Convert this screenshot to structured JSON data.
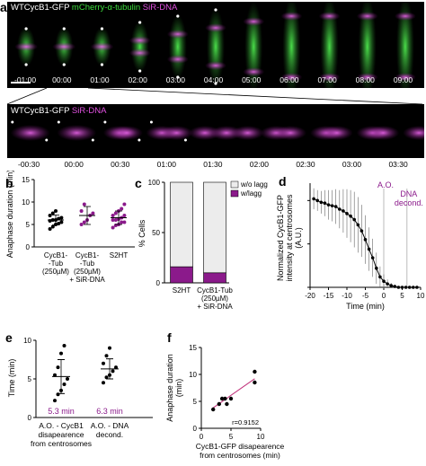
{
  "panel_labels": {
    "a": "a",
    "b": "b",
    "c": "c",
    "d": "d",
    "e": "e",
    "f": "f"
  },
  "panel_a": {
    "row1_header": {
      "part1": "WTCycB1-GFP",
      "part2": "mCherry-α-tubulin",
      "part3": "SiR-DNA"
    },
    "row1_times": [
      "-01:00",
      "00:00",
      "01:00",
      "02:00",
      "03:00",
      "04:00",
      "05:00",
      "06:00",
      "07:00",
      "08:00",
      "09:00"
    ],
    "row2_header": {
      "part1": "WTCycB1-GFP",
      "part2": "SiR-DNA"
    },
    "row2_times": [
      "-00:30",
      "00:00",
      "00:30",
      "01:00",
      "01:30",
      "02:00",
      "02:30",
      "03:00",
      "03:30"
    ],
    "colors": {
      "gfp": "#ffffff",
      "tubulin": "#3ddc3d",
      "dna": "#d040d0"
    }
  },
  "chart_data": [
    {
      "panel": "b",
      "type": "scatter",
      "ylabel": "Anaphase duration (min)",
      "ylim": [
        0,
        15
      ],
      "yticks": [
        0,
        5,
        10,
        15
      ],
      "categories": [
        "CycB1-Tub (250µM)",
        "CycB1-Tub (250µM) + SiR-DNA",
        "S2HT"
      ],
      "category_lines": [
        [
          "CycB1-",
          "-Tub",
          "(250µM)"
        ],
        [
          "CycB1-",
          "-Tub",
          "(250µM)",
          "+ SiR-DNA"
        ],
        [
          "S2HT"
        ]
      ],
      "series": [
        {
          "color": "#000000",
          "values": [
            4,
            4.5,
            5,
            5.2,
            5.5,
            5.8,
            6,
            6,
            6.3,
            6.5,
            7,
            7.5,
            8
          ]
        },
        {
          "color": "#8b1a8b",
          "values": [
            5,
            5.5,
            6,
            7,
            7.5,
            8,
            9.5
          ]
        },
        {
          "color": "#8b1a8b",
          "values": [
            4.3,
            4.8,
            5,
            5.5,
            5.5,
            6,
            6,
            6.2,
            6.5,
            7,
            7,
            7.5,
            8,
            8.5,
            9.5
          ]
        }
      ],
      "means": [
        6.0,
        7.0,
        6.5
      ],
      "sds": [
        1.1,
        2.0,
        1.5
      ]
    },
    {
      "panel": "c",
      "type": "bar",
      "ylabel": "% Cells",
      "ylim": [
        0,
        100
      ],
      "yticks": [
        0,
        50,
        100
      ],
      "categories": [
        "S2HT",
        "CycB1-Tub (250µM) + SiR-DNA"
      ],
      "category_lines": [
        [
          "S2HT"
        ],
        [
          "CycB1-Tub",
          "(250µM)",
          "+ SiR-DNA"
        ]
      ],
      "series": [
        {
          "name": "w/o lagg",
          "color": "#ececec",
          "values": [
            84,
            90
          ]
        },
        {
          "name": "w/lagg",
          "color": "#8b1a8b",
          "values": [
            16,
            10
          ]
        }
      ],
      "legend": "top-right"
    },
    {
      "panel": "d",
      "type": "line",
      "ylabel": "Normalized CycB1-GFP intensity at centrosomes (A.U.)",
      "xlabel": "Time (min)",
      "xlim": [
        -20,
        10
      ],
      "xticks": [
        -20,
        -15,
        -10,
        -5,
        0,
        5,
        10
      ],
      "ylim": [
        0,
        1.2
      ],
      "yticks": [
        0,
        0.5,
        1.0
      ],
      "annotations": [
        "A.O.",
        "DNA decond."
      ],
      "vlines": [
        0,
        6.3
      ],
      "x": [
        -19,
        -18,
        -17,
        -16,
        -15,
        -14,
        -13,
        -12,
        -11,
        -10,
        -9,
        -8,
        -7,
        -6,
        -5,
        -4,
        -3,
        -2,
        -1,
        0,
        1,
        2,
        3,
        4,
        5,
        6,
        7,
        8,
        9
      ],
      "y": [
        1.02,
        1.0,
        0.98,
        0.97,
        0.95,
        0.94,
        0.93,
        0.9,
        0.88,
        0.85,
        0.82,
        0.78,
        0.72,
        0.65,
        0.55,
        0.44,
        0.34,
        0.22,
        0.12,
        0.07,
        0.04,
        0.02,
        0.01,
        0.0,
        0.0,
        0.0,
        0.0,
        0.0,
        0.0
      ],
      "err": [
        0.12,
        0.12,
        0.13,
        0.15,
        0.17,
        0.18,
        0.2,
        0.22,
        0.25,
        0.28,
        0.3,
        0.32,
        0.32,
        0.3,
        0.28,
        0.25,
        0.22,
        0.18,
        0.12,
        0.08,
        0.05,
        0.03,
        0.02,
        0.01,
        0.01,
        0.01,
        0.01,
        0.01,
        0.01
      ]
    },
    {
      "panel": "e",
      "type": "scatter",
      "ylabel": "Time (min)",
      "ylim": [
        0,
        10
      ],
      "yticks": [
        0,
        5,
        10
      ],
      "categories": [
        "A.O. - CycB1 disapearence from centrosomes",
        "A.O. - DNA decond."
      ],
      "category_lines": [
        [
          "A.O. - CycB1",
          "disapearence",
          "from centrosomes"
        ],
        [
          "A.O. - DNA",
          "decond."
        ]
      ],
      "series": [
        {
          "color": "#000000",
          "values": [
            2.2,
            3,
            3.5,
            4.3,
            5,
            5.5,
            6.5,
            8.3,
            9.3
          ]
        },
        {
          "color": "#000000",
          "values": [
            4.5,
            5.2,
            5.5,
            6,
            6.5,
            7,
            8,
            9
          ]
        }
      ],
      "means": [
        5.3,
        6.3
      ],
      "sds": [
        2.2,
        1.3
      ],
      "mean_labels": [
        "5.3 min",
        "6.3 min"
      ],
      "mean_label_color": "#8b1a8b"
    },
    {
      "panel": "f",
      "type": "scatter",
      "ylabel": "Anaphase duration (min)",
      "xlabel": "CycB1-GFP disapearence from centrosomes (min)",
      "xlim": [
        0,
        10
      ],
      "xticks": [
        0,
        5,
        10
      ],
      "ylim": [
        0,
        15
      ],
      "yticks": [
        0,
        5,
        10,
        15
      ],
      "x": [
        2,
        3,
        3.5,
        4,
        4.3,
        5,
        9,
        9
      ],
      "y": [
        3.5,
        4.5,
        5.5,
        5.5,
        4.5,
        5.5,
        10.5,
        8.5
      ],
      "fit": {
        "x": [
          2,
          9
        ],
        "y": [
          3.8,
          9.2
        ],
        "color": "#c0307a"
      },
      "annotation": "r=0.9152"
    }
  ]
}
